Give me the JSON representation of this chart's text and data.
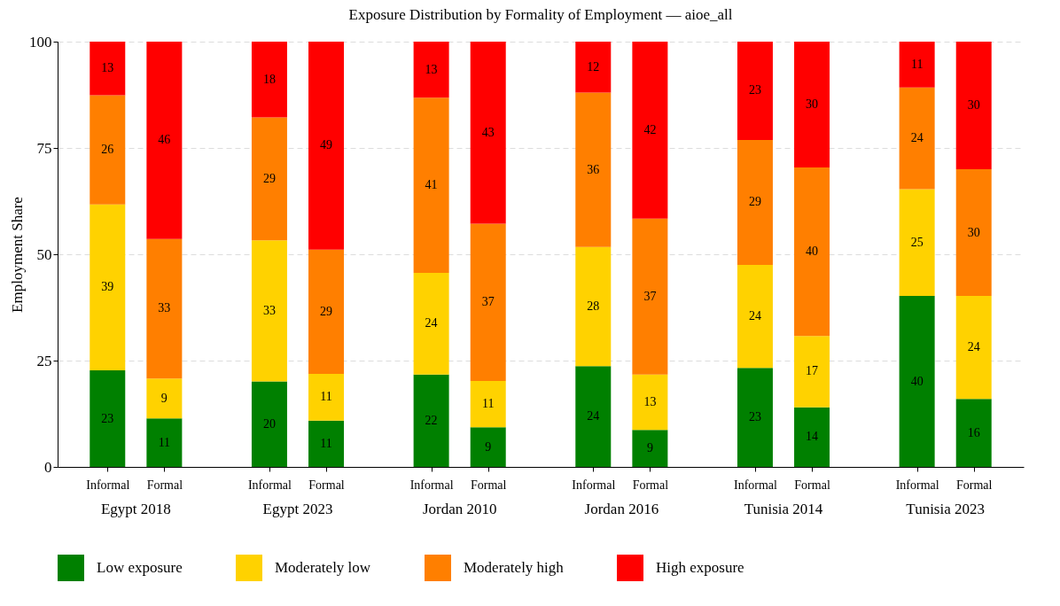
{
  "chart_data": {
    "type": "bar",
    "title": "Exposure Distribution by Formality of Employment — aioe_all",
    "ylabel": "Employment Share",
    "categories": [
      "Informal",
      "Formal",
      "Informal",
      "Formal",
      "Informal",
      "Formal",
      "Informal",
      "Formal",
      "Informal",
      "Formal",
      "Informal",
      "Formal"
    ],
    "annotations": [
      "Egypt 2018",
      "Egypt 2023",
      "Jordan 2010",
      "Jordan 2016",
      "Tunisia 2014",
      "Tunisia 2023"
    ],
    "stacked": true,
    "ylim": [
      0,
      100
    ],
    "yticks": [
      0,
      25,
      50,
      75,
      100
    ],
    "grid": "y",
    "legend": "bottom",
    "series": [
      {
        "name": "Low exposure",
        "color": "#008000",
        "values": [
          22.7,
          11.4,
          20.1,
          10.9,
          21.7,
          9.3,
          23.7,
          8.7,
          23.3,
          14.0,
          40.2,
          16.0
        ],
        "value_labels": [
          "23",
          "11",
          "20",
          "11",
          "22",
          "9",
          "24",
          "9",
          "23",
          "14",
          "40",
          "16"
        ]
      },
      {
        "name": "Moderately low",
        "color": "#ffd200",
        "values": [
          39.0,
          9.4,
          33.2,
          11.0,
          23.9,
          10.9,
          28.0,
          13.0,
          24.2,
          16.8,
          25.1,
          24.2
        ],
        "value_labels": [
          "39",
          "9",
          "33",
          "11",
          "24",
          "11",
          "28",
          "13",
          "24",
          "17",
          "25",
          "24"
        ]
      },
      {
        "name": "Moderately high",
        "color": "#ff7f00",
        "values": [
          25.7,
          32.8,
          28.9,
          29.2,
          41.2,
          37.0,
          36.3,
          36.7,
          29.4,
          39.6,
          23.9,
          29.8
        ],
        "value_labels": [
          "26",
          "33",
          "29",
          "29",
          "41",
          "37",
          "36",
          "37",
          "29",
          "40",
          "24",
          "30"
        ]
      },
      {
        "name": "High exposure",
        "color": "#ff0000",
        "values": [
          12.6,
          46.4,
          17.8,
          48.9,
          13.2,
          42.8,
          12.0,
          41.6,
          23.1,
          29.6,
          10.8,
          30.0
        ],
        "value_labels": [
          "13",
          "46",
          "18",
          "49",
          "13",
          "43",
          "12",
          "42",
          "23",
          "30",
          "11",
          "30"
        ]
      }
    ]
  }
}
